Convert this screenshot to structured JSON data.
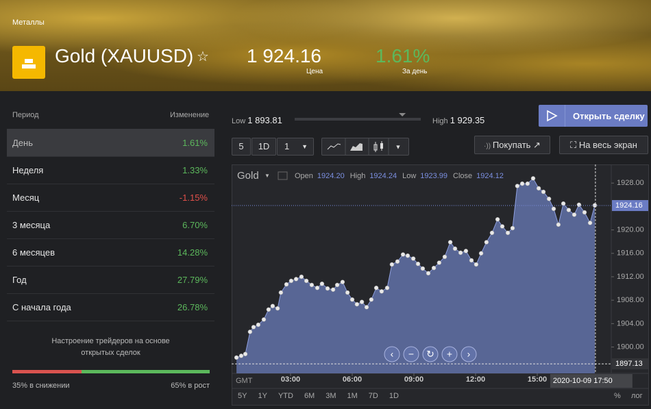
{
  "header": {
    "category": "Металлы",
    "title": "Gold (XAUUSD)",
    "price": {
      "value": 1924.16,
      "label": "1 924.16"
    },
    "price_caption": "Цена",
    "change": "1.61%",
    "change_caption": "За день"
  },
  "periods": {
    "head": [
      "Период",
      "Изменение"
    ],
    "rows": [
      [
        "День",
        "1.61%"
      ],
      [
        "Неделя",
        "1.33%"
      ],
      [
        "Месяц",
        "-1.15%"
      ],
      [
        "3 месяца",
        "6.70%"
      ],
      [
        "6 месяцев",
        "14.28%"
      ],
      [
        "Год",
        "27.79%"
      ],
      [
        "С начала года",
        "26.78%"
      ]
    ]
  },
  "sentiment": {
    "lines": [
      "Настроение трейдеров на основе",
      "открытых сделок"
    ],
    "down": 35,
    "up": 65,
    "down_label": "35% в снижении",
    "up_label": "65% в рост"
  },
  "range": {
    "low_caption": "Low",
    "low": {
      "value": 1893.81,
      "label": "1 893.81"
    },
    "high_caption": "High",
    "high": {
      "value": 1929.35,
      "label": "1 929.35"
    }
  },
  "buttons": {
    "trade": "Открыть сделку",
    "buy": "Покупать",
    "fullscreen": "На весь экран"
  },
  "toolbar": {
    "interval_count": "5",
    "interval": "1D",
    "chart_count": "1"
  },
  "price_chart": {
    "symbol": "Gold",
    "ohlc": [
      [
        "Open",
        "1924.20"
      ],
      [
        "High",
        "1924.24"
      ],
      [
        "Low",
        "1923.99"
      ],
      [
        "Close",
        "1924.12"
      ]
    ],
    "x": [
      0.37,
      0.6,
      0.8,
      1.03,
      1.2,
      1.43,
      1.7,
      1.93,
      2.13,
      2.37,
      2.53,
      2.8,
      3.03,
      3.27,
      3.53,
      3.77,
      4.03,
      4.3,
      4.53,
      4.8,
      5.07,
      5.27,
      5.53,
      5.77,
      6.0,
      6.23,
      6.47,
      6.7,
      6.93,
      7.17,
      7.43,
      7.7,
      7.93,
      8.2,
      8.47,
      8.7,
      8.97,
      9.2,
      9.43,
      9.7,
      9.97,
      10.23,
      10.5,
      10.77,
      11.0,
      11.27,
      11.53,
      11.8,
      12.03,
      12.27,
      12.53,
      12.8,
      13.07,
      13.3,
      13.57,
      13.8,
      14.03,
      14.27,
      14.53,
      14.8,
      15.07,
      15.3,
      15.57,
      15.8,
      16.03,
      16.27,
      16.53,
      16.8,
      17.03,
      17.3,
      17.57,
      17.8
    ],
    "values": [
      1898.2,
      1898.5,
      1898.8,
      1902.6,
      1903.4,
      1903.8,
      1904.7,
      1906.4,
      1907.0,
      1906.6,
      1909.3,
      1910.7,
      1911.3,
      1911.6,
      1912.0,
      1911.3,
      1910.6,
      1910.1,
      1910.8,
      1910.0,
      1909.8,
      1910.6,
      1911.1,
      1909.3,
      1908.1,
      1907.3,
      1907.7,
      1906.8,
      1908.1,
      1910.1,
      1909.5,
      1910.1,
      1914.1,
      1914.6,
      1915.8,
      1915.6,
      1915.1,
      1914.2,
      1913.4,
      1912.6,
      1913.5,
      1914.4,
      1915.4,
      1917.9,
      1916.8,
      1916.1,
      1916.4,
      1914.8,
      1914.1,
      1916.0,
      1917.9,
      1919.5,
      1921.8,
      1920.6,
      1919.5,
      1920.3,
      1927.5,
      1927.9,
      1927.9,
      1928.8,
      1927.1,
      1926.5,
      1925.3,
      1923.6,
      1920.9,
      1924.5,
      1923.4,
      1922.6,
      1924.3,
      1923.0,
      1921.2,
      1924.2
    ],
    "color": "#6272a8",
    "xlim": [
      0.2,
      18.6
    ],
    "ylim": [
      1895.5,
      1930.6
    ],
    "xticks": [
      {
        "value": 3,
        "label": "03:00"
      },
      {
        "value": 6,
        "label": "06:00"
      },
      {
        "value": 9,
        "label": "09:00"
      },
      {
        "value": 12,
        "label": "12:00"
      },
      {
        "value": 15,
        "label": "15:00"
      }
    ],
    "yticks": [
      {
        "value": 1928,
        "label": "1928.00"
      },
      {
        "value": 1920,
        "label": "1920.00"
      },
      {
        "value": 1916,
        "label": "1916.00"
      },
      {
        "value": 1912,
        "label": "1912.00"
      },
      {
        "value": 1908,
        "label": "1908.00"
      },
      {
        "value": 1904,
        "label": "1904.00"
      },
      {
        "value": 1900,
        "label": "1900.00"
      }
    ],
    "current": {
      "value": 1924.16,
      "label": "1924.16"
    },
    "low_line": {
      "value": 1897.13,
      "label": "1897.13"
    },
    "cursor": {
      "value": 17.83,
      "label": "2020-10-09 17:50"
    },
    "timezone": "GMT",
    "ranges": [
      "5Y",
      "1Y",
      "YTD",
      "6M",
      "3M",
      "1M",
      "7D",
      "1D"
    ],
    "scale_options": [
      "%",
      "лог"
    ]
  }
}
